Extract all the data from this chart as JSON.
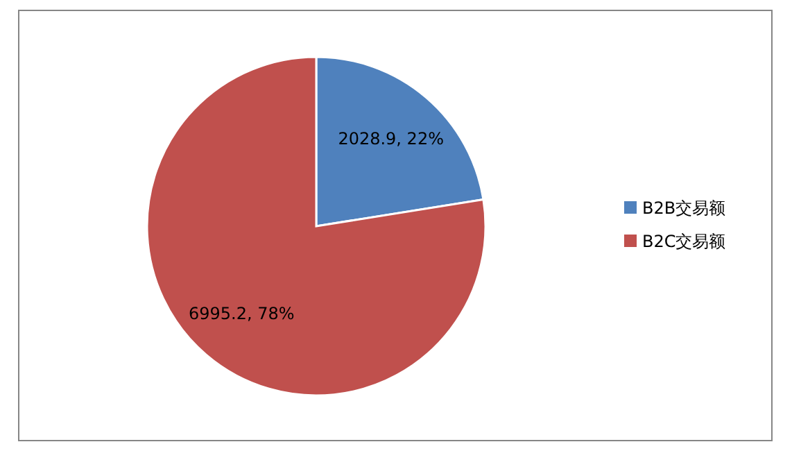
{
  "chart_data": {
    "type": "pie",
    "categories": [
      "B2B交易额",
      "B2C交易额"
    ],
    "values": [
      2028.9,
      6995.2
    ],
    "colors": [
      "#4f81bd",
      "#c0504d"
    ],
    "value_labels": [
      "2028.9, 22%",
      "6995.2, 78%"
    ],
    "legend": "right"
  }
}
